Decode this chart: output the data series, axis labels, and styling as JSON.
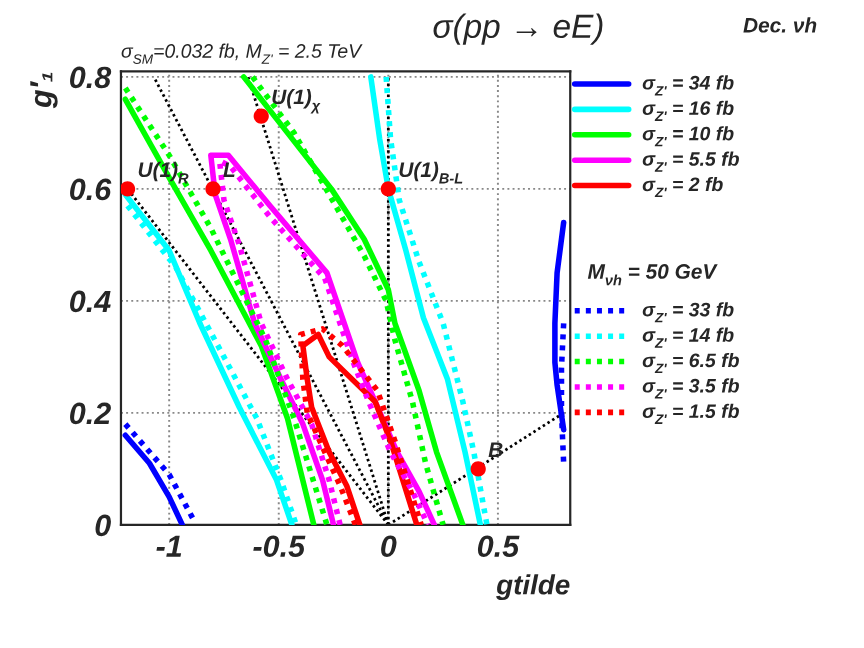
{
  "chart_data": {
    "type": "line",
    "title": "σ(pp → eE)",
    "subtitle": "σ$_{SM}$=0.032 fb, M$_{Z'}$ = 2.5 TeV",
    "xlabel": "gtilde",
    "ylabel": "g′₁",
    "xlim": [
      -1.22,
      0.83
    ],
    "ylim": [
      0,
      0.81
    ],
    "xticks": [
      -1,
      -0.5,
      0,
      0.5
    ],
    "yticks": [
      0,
      0.2,
      0.4,
      0.6,
      0.8
    ],
    "grid": true,
    "legend": "right",
    "annotations": [
      "Dec. νh",
      "M$_{νh}$ = 50 GeV",
      {
        "text": "U(1)$_{R}$",
        "x": -1.19,
        "y": 0.6
      },
      {
        "text": "L",
        "x": -0.8,
        "y": 0.6
      },
      {
        "text": "U(1)$_{χ}$",
        "x": -0.58,
        "y": 0.73
      },
      {
        "text": "U(1)$_{B-L}$",
        "x": 0,
        "y": 0.6
      },
      {
        "text": "B",
        "x": 0.41,
        "y": 0.1
      }
    ],
    "series": [
      {
        "line_style": "dotted",
        "color": "#000000",
        "x": [
          0,
          -1.19
        ],
        "values": [
          0,
          0.6
        ]
      },
      {
        "line_style": "dotted",
        "color": "#000000",
        "x": [
          0,
          -1.07
        ],
        "values": [
          0,
          0.8
        ]
      },
      {
        "line_style": "dotted",
        "color": "#000000",
        "x": [
          0,
          -0.64
        ],
        "values": [
          0,
          0.8
        ]
      },
      {
        "line_style": "dotted",
        "color": "#000000",
        "x": [
          0,
          0
        ],
        "values": [
          0,
          0.8
        ]
      },
      {
        "line_style": "dotted",
        "color": "#000000",
        "x": [
          0,
          0.8
        ],
        "values": [
          0,
          0.2
        ]
      },
      {
        "line_style": "solid",
        "name": "σ$_{Z'}$ = 34 fb",
        "color": "#0000ff",
        "x": [
          -1.2,
          -1.09,
          -1.0,
          -0.94
        ],
        "values": [
          0.16,
          0.11,
          0.05,
          0
        ]
      },
      {
        "line_style": "solid",
        "color": "#0000ff",
        "x": [
          0.8,
          0.77,
          0.76,
          0.76,
          0.77,
          0.8
        ],
        "values": [
          0.54,
          0.45,
          0.36,
          0.29,
          0.25,
          0.17
        ]
      },
      {
        "line_style": "solid",
        "name": "σ$_{Z'}$ = 16 fb",
        "color": "#00ffff",
        "x": [
          -1.2,
          -1.0,
          -0.86,
          -0.68,
          -0.51,
          -0.44
        ],
        "values": [
          0.59,
          0.49,
          0.36,
          0.21,
          0.08,
          0
        ]
      },
      {
        "line_style": "solid",
        "color": "#00ffff",
        "x": [
          -0.08,
          -0.04,
          0,
          0.08,
          0.16,
          0.27,
          0.35,
          0.42
        ],
        "values": [
          0.8,
          0.69,
          0.6,
          0.49,
          0.37,
          0.26,
          0.13,
          0
        ]
      },
      {
        "line_style": "solid",
        "name": "σ$_{Z'}$ = 10 fb",
        "color": "#00ff00",
        "x": [
          -1.2,
          -1.0,
          -0.81,
          -0.58,
          -0.46,
          -0.34
        ],
        "values": [
          0.76,
          0.62,
          0.49,
          0.32,
          0.19,
          0
        ]
      },
      {
        "line_style": "solid",
        "color": "#00ff00",
        "x": [
          -0.66,
          -0.46,
          -0.26,
          -0.11,
          0,
          0.03,
          0.14,
          0.22,
          0.34
        ],
        "values": [
          0.8,
          0.7,
          0.6,
          0.51,
          0.42,
          0.36,
          0.24,
          0.13,
          0
        ]
      },
      {
        "line_style": "solid",
        "name": "σ$_{Z'}$ = 5.5 fb",
        "color": "#ff00ff",
        "x": [
          -0.25,
          -0.3,
          -0.39,
          -0.49,
          -0.61,
          -0.72,
          -0.79,
          -0.81,
          -0.73,
          -0.54,
          -0.28,
          -0.14,
          -0.06,
          0.04,
          0.14,
          0.21
        ],
        "values": [
          0,
          0.08,
          0.18,
          0.26,
          0.36,
          0.51,
          0.59,
          0.66,
          0.66,
          0.57,
          0.45,
          0.29,
          0.22,
          0.13,
          0.06,
          0
        ]
      },
      {
        "line_style": "solid",
        "name": "σ$_{Z'}$ = 2 fb",
        "color": "#ff0000",
        "x": [
          -0.13,
          -0.19,
          -0.27,
          -0.35,
          -0.37,
          -0.39,
          -0.32,
          -0.27,
          -0.06,
          0.01,
          0.09,
          0.13
        ],
        "values": [
          0,
          0.07,
          0.13,
          0.21,
          0.26,
          0.32,
          0.34,
          0.3,
          0.22,
          0.15,
          0.05,
          0
        ]
      },
      {
        "line_style": "dotted",
        "name": "σ$_{Z'}$ = 33 fb",
        "color": "#0000ff",
        "x": [
          -1.2,
          -1.0,
          -0.89
        ],
        "values": [
          0.18,
          0.09,
          0.01
        ]
      },
      {
        "line_style": "dotted",
        "color": "#0000ff",
        "x": [
          0.8,
          0.79,
          0.79,
          0.8
        ],
        "values": [
          0.36,
          0.28,
          0.2,
          0.11
        ]
      },
      {
        "line_style": "dotted",
        "name": "σ$_{Z'}$ = 14 fb",
        "color": "#00ffff",
        "x": [
          -1.19,
          -0.97,
          -0.75,
          -0.6,
          -0.49,
          -0.42
        ],
        "values": [
          0.57,
          0.46,
          0.3,
          0.19,
          0.08,
          0
        ]
      },
      {
        "line_style": "dotted",
        "color": "#00ffff",
        "x": [
          -0.01,
          0.01,
          0.05,
          0.14,
          0.25,
          0.34,
          0.39,
          0.45
        ],
        "values": [
          0.8,
          0.69,
          0.58,
          0.47,
          0.36,
          0.22,
          0.13,
          0
        ]
      },
      {
        "line_style": "dotted",
        "name": "σ$_{Z'}$ = 6.5 fb",
        "color": "#00ff00",
        "x": [
          -1.2,
          -1.0,
          -0.81,
          -0.56,
          -0.43,
          -0.28
        ],
        "values": [
          0.78,
          0.66,
          0.53,
          0.33,
          0.19,
          0
        ]
      },
      {
        "line_style": "dotted",
        "color": "#00ff00",
        "x": [
          -0.62,
          -0.43,
          -0.27,
          -0.11,
          -0.01,
          0.03,
          0.11,
          0.17,
          0.25
        ],
        "values": [
          0.8,
          0.7,
          0.59,
          0.48,
          0.4,
          0.33,
          0.22,
          0.11,
          0
        ]
      },
      {
        "line_style": "dotted",
        "name": "σ$_{Z'}$ = 3.5 fb",
        "color": "#ff00ff",
        "x": [
          -0.22,
          -0.27,
          -0.35,
          -0.46,
          -0.58,
          -0.68,
          -0.75,
          -0.77,
          -0.72,
          -0.54,
          -0.29,
          -0.16,
          -0.09,
          0.01,
          0.11,
          0.18
        ],
        "values": [
          0,
          0.08,
          0.18,
          0.26,
          0.36,
          0.5,
          0.58,
          0.65,
          0.64,
          0.55,
          0.44,
          0.29,
          0.22,
          0.13,
          0.06,
          0
        ]
      },
      {
        "line_style": "dotted",
        "name": "σ$_{Z'}$ = 1.5 fb",
        "color": "#ff0000",
        "x": [
          -0.15,
          -0.22,
          -0.29,
          -0.37,
          -0.39,
          -0.4,
          -0.3,
          -0.21,
          -0.05,
          0.03,
          0.11,
          0.15
        ],
        "values": [
          0,
          0.07,
          0.13,
          0.2,
          0.26,
          0.34,
          0.35,
          0.32,
          0.24,
          0.15,
          0.05,
          0
        ]
      },
      {
        "type": "scatter",
        "marker": "circle",
        "color": "#ff0000",
        "x": [
          -1.19,
          -0.8,
          -0.58,
          0,
          0.41
        ],
        "values": [
          0.6,
          0.6,
          0.73,
          0.6,
          0.1
        ]
      }
    ]
  }
}
